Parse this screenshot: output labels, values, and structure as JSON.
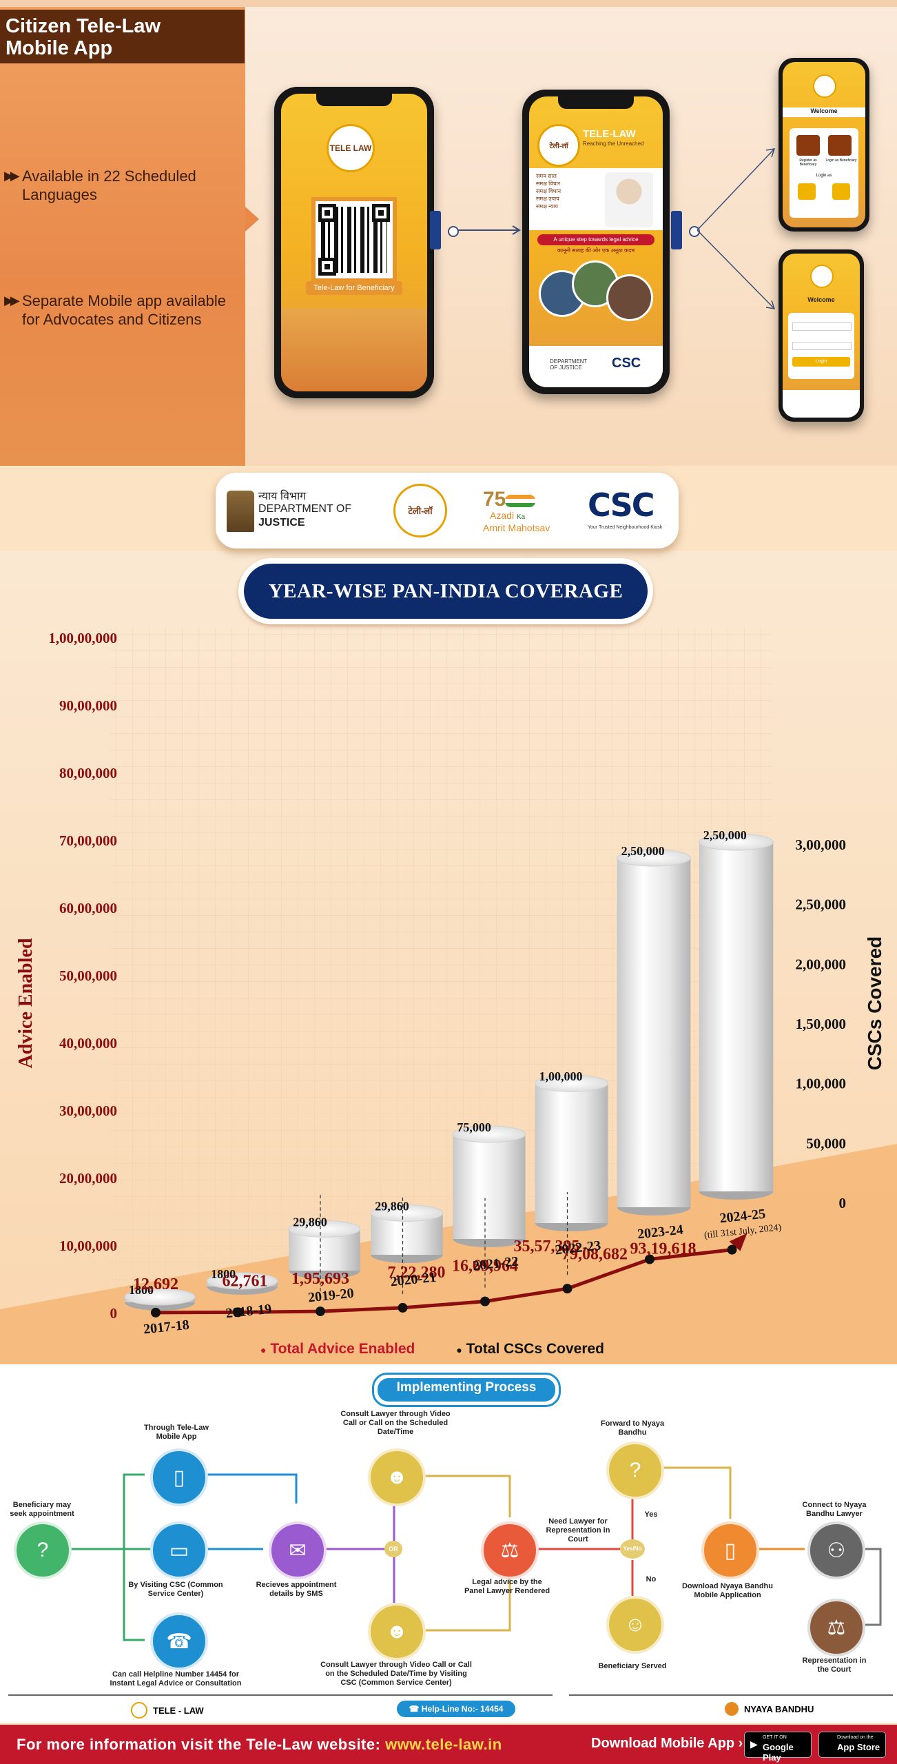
{
  "app_title": "Citizen Tele-Law\nMobile App",
  "features": [
    {
      "text": "Available in 22 Scheduled Languages"
    },
    {
      "text": "Separate Mobile app available for Advocates and Citizens"
    }
  ],
  "phone1": {
    "qr_caption": "Tele-Law for Beneficiary",
    "logo_text": "TELE LAW"
  },
  "phone2": {
    "brand": "TELE-LAW",
    "tagline": "Reaching the Unreached",
    "hindi_brand": "टेली-लॉ",
    "slogan_lines": [
      "समय साल",
      "समक्ष विचार",
      "समक्ष विधान",
      "समक्ष उपाय",
      "समक्ष न्याय"
    ],
    "banner_en": "A unique step towards legal advice",
    "banner_hi": "कानूनी सलाह की ओर एक अनूठा कदम",
    "dept": "DEPARTMENT OF JUSTICE",
    "csc": "CSC"
  },
  "phone3": {
    "welcome": "Welcome",
    "option1": "Register as Beneficiary",
    "option2": "Login as Beneficiary",
    "login": "Login as"
  },
  "phone4": {
    "welcome": "Welcome",
    "button": "Login"
  },
  "logos": {
    "doj_hindi": "न्याय विभाग",
    "doj_line1": "DEPARTMENT OF",
    "doj_line2": "JUSTICE",
    "telelaw": "टेली-लॉ",
    "azadi_line1": "Azadi",
    "azadi_ka": "Ka",
    "azadi_line2": "Amrit Mahotsav",
    "azadi_num": "75",
    "csc": "CSC",
    "csc_tag": "Your Trusted Neighbourhood Kiosk"
  },
  "chart_title": "YEAR-WISE PAN-INDIA COVERAGE",
  "chart_data": {
    "type": "bar",
    "categories": [
      "2017-18",
      "2018-19",
      "2019-20",
      "2020-21",
      "2021-22",
      "2022-23",
      "2023-24",
      "2024-25"
    ],
    "category_note": "(till 31st July, 2024)",
    "ylabel": "Advice Enabled",
    "y2label": "CSCs Covered",
    "ylim": [
      0,
      100000000
    ],
    "y2lim": [
      0,
      300000
    ],
    "y_ticks": [
      "0",
      "10,00,000",
      "20,00,000",
      "30,00,000",
      "40,00,000",
      "50,00,000",
      "60,00,000",
      "70,00,000",
      "80,00,000",
      "90,00,000",
      "1,00,00,000"
    ],
    "y2_ticks": [
      "0",
      "50,000",
      "1,00,000",
      "1,50,000",
      "2,00,000",
      "2,50,000",
      "3,00,000"
    ],
    "series": [
      {
        "name": "Total Advice Enabled",
        "values": [
          12692,
          62761,
          195693,
          722280,
          1669964,
          3557395,
          7908682,
          9319618
        ],
        "labels": [
          "12,692",
          "62,761",
          "1,95,693",
          "7,22,280",
          "16,69,964",
          "35,57,395",
          "79,08,682",
          "93,19,618"
        ],
        "color": "#8b0e0e"
      },
      {
        "name": "Total CSCs Covered",
        "values": [
          1800,
          1800,
          29860,
          29860,
          75000,
          100000,
          250000,
          250000
        ],
        "labels": [
          "1800",
          "1800",
          "29,860",
          "29,860",
          "75,000",
          "1,00,000",
          "2,50,000",
          "2,50,000"
        ],
        "color": "#111111"
      }
    ],
    "legend": "bottom"
  },
  "process": {
    "title": "Implementing Process",
    "steps": {
      "beneficiary": "Beneficiary may seek appointment",
      "app": "Through Tele-Law Mobile App",
      "csc": "By Visiting CSC (Common Service Center)",
      "helpline": "Can call Helpline Number 14454 for Instant Legal Advice or Consultation",
      "sms": "Recieves appointment details by SMS",
      "or": "OR",
      "consult_direct": "Consult Lawyer through Video Call or Call on the Scheduled Date/Time",
      "consult_csc": "Consult Lawyer through Video Call or Call on the Scheduled Date/Time by Visiting CSC (Common Service Center)",
      "advice": "Legal advice by the Panel Lawyer Rendered",
      "need": "Need Lawyer for Representation in Court",
      "yesno": "Yes/No",
      "yes": "Yes",
      "no": "No",
      "forward": "Forward to Nyaya Bandhu",
      "download": "Download Nyaya Bandhu Mobile Application",
      "connect": "Connect to Nyaya Bandhu Lawyer",
      "served": "Beneficiary Served",
      "represent": "Representation in the Court"
    },
    "bottom_left": "TELE - LAW",
    "helpline_badge": "Help-Line No:- 14454",
    "bottom_right": "NYAYA BANDHU"
  },
  "footer": {
    "text": "For more information visit the Tele-Law website: ",
    "url": "www.tele-law.in",
    "download": "Download Mobile App",
    "google": "Google Play",
    "google_small": "GET IT ON",
    "apple": "App Store",
    "apple_small": "Download on the"
  }
}
